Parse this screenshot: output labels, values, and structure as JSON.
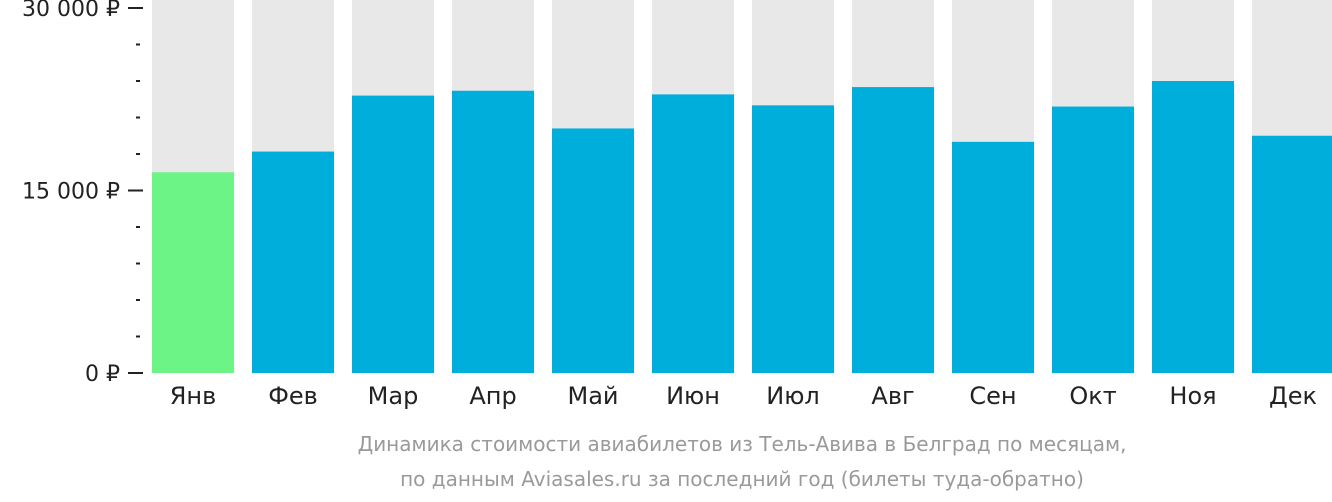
{
  "chart_data": {
    "type": "bar",
    "categories": [
      "Янв",
      "Фев",
      "Мар",
      "Апр",
      "Май",
      "Июн",
      "Июл",
      "Авг",
      "Сен",
      "Окт",
      "Ноя",
      "Дек"
    ],
    "values": [
      16500,
      18200,
      22800,
      23200,
      20100,
      22900,
      22000,
      23500,
      19000,
      21900,
      24000,
      19500
    ],
    "ylim": [
      0,
      30000
    ],
    "y_ticks": [
      {
        "value": 0,
        "label": "0 ₽"
      },
      {
        "value": 15000,
        "label": "15 000 ₽"
      },
      {
        "value": 30000,
        "label": "30 000 ₽"
      }
    ],
    "minor_tick_step": 3000,
    "highlight_index": 0,
    "colors": {
      "bar": "#00aedc",
      "bar_highlight": "#6cf486",
      "bar_background": "#e8e8e8",
      "axis": "#222222"
    },
    "caption_lines": [
      "Динамика стоимости авиабилетов из Тель-Авива в Белград по месяцам,",
      "по данным Aviasales.ru за последний год (билеты туда-обратно)"
    ],
    "xlabel": "",
    "ylabel": "",
    "grid": false
  }
}
